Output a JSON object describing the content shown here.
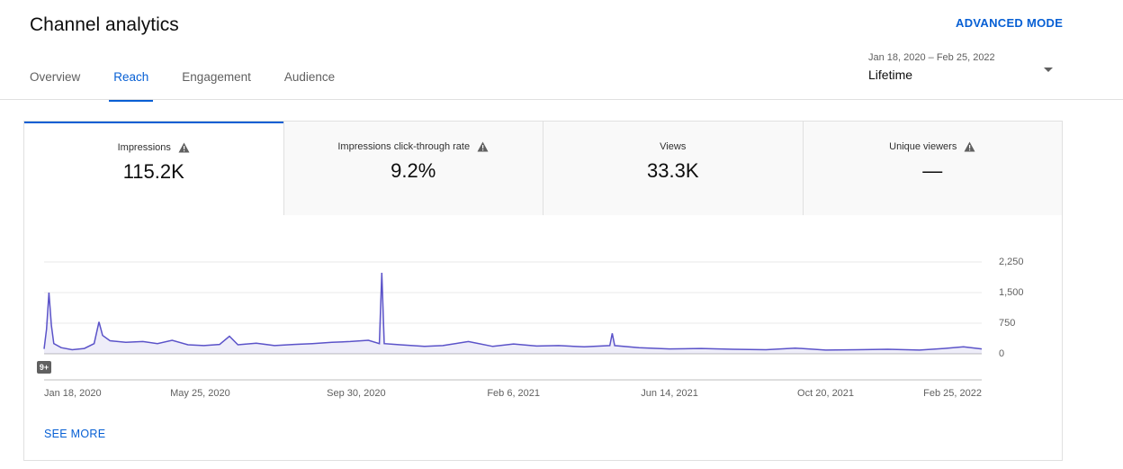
{
  "header": {
    "title": "Channel analytics",
    "advanced_mode": "ADVANCED MODE",
    "date_range": "Jan 18, 2020 – Feb 25, 2022",
    "period": "Lifetime"
  },
  "tabs": [
    "Overview",
    "Reach",
    "Engagement",
    "Audience"
  ],
  "active_tab": 1,
  "metrics": [
    {
      "label": "Impressions",
      "value": "115.2K",
      "warning": true
    },
    {
      "label": "Impressions click-through rate",
      "value": "9.2%",
      "warning": true
    },
    {
      "label": "Views",
      "value": "33.3K",
      "warning": false
    },
    {
      "label": "Unique viewers",
      "value": "—",
      "warning": true
    }
  ],
  "chart_data": {
    "type": "line",
    "color": "#5b53c9",
    "x": [
      "2020-01-18",
      "2020-01-20",
      "2020-01-22",
      "2020-01-24",
      "2020-01-26",
      "2020-02-01",
      "2020-02-10",
      "2020-02-20",
      "2020-02-28",
      "2020-03-03",
      "2020-03-06",
      "2020-03-12",
      "2020-03-25",
      "2020-04-08",
      "2020-04-20",
      "2020-05-02",
      "2020-05-15",
      "2020-05-28",
      "2020-06-10",
      "2020-06-18",
      "2020-06-25",
      "2020-07-10",
      "2020-07-25",
      "2020-08-10",
      "2020-08-25",
      "2020-09-10",
      "2020-09-25",
      "2020-10-10",
      "2020-10-19",
      "2020-10-21",
      "2020-10-23",
      "2020-11-05",
      "2020-11-25",
      "2020-12-10",
      "2020-12-31",
      "2021-01-20",
      "2021-02-06",
      "2021-02-25",
      "2021-03-15",
      "2021-04-05",
      "2021-04-26",
      "2021-04-28",
      "2021-04-30",
      "2021-05-20",
      "2021-06-14",
      "2021-07-10",
      "2021-08-05",
      "2021-09-01",
      "2021-09-25",
      "2021-10-20",
      "2021-11-15",
      "2021-12-10",
      "2022-01-05",
      "2022-01-25",
      "2022-02-10",
      "2022-02-25"
    ],
    "values": [
      120,
      600,
      1500,
      700,
      250,
      150,
      100,
      130,
      250,
      780,
      450,
      320,
      280,
      300,
      250,
      330,
      220,
      200,
      230,
      430,
      220,
      260,
      200,
      230,
      250,
      280,
      300,
      330,
      250,
      1985,
      250,
      220,
      180,
      200,
      300,
      180,
      240,
      190,
      200,
      170,
      200,
      500,
      200,
      150,
      120,
      130,
      110,
      100,
      140,
      90,
      100,
      110,
      90,
      130,
      170,
      120
    ],
    "xlim": [
      "2020-01-18",
      "2022-02-25"
    ],
    "xticks": [
      {
        "value": "2020-01-18",
        "label": "Jan 18, 2020"
      },
      {
        "value": "2020-05-25",
        "label": "May 25, 2020"
      },
      {
        "value": "2020-09-30",
        "label": "Sep 30, 2020"
      },
      {
        "value": "2021-02-06",
        "label": "Feb 6, 2021"
      },
      {
        "value": "2021-06-14",
        "label": "Jun 14, 2021"
      },
      {
        "value": "2021-10-20",
        "label": "Oct 20, 2021"
      },
      {
        "value": "2022-02-25",
        "label": "Feb 25, 2022"
      }
    ],
    "ylim": [
      0,
      2250
    ],
    "yticks": [
      0,
      750,
      {
        "value": 1500,
        "label": "1,500"
      },
      {
        "value": 2250,
        "label": "2,250"
      }
    ],
    "grid": true,
    "annotation": "9+"
  },
  "see_more": "SEE MORE"
}
